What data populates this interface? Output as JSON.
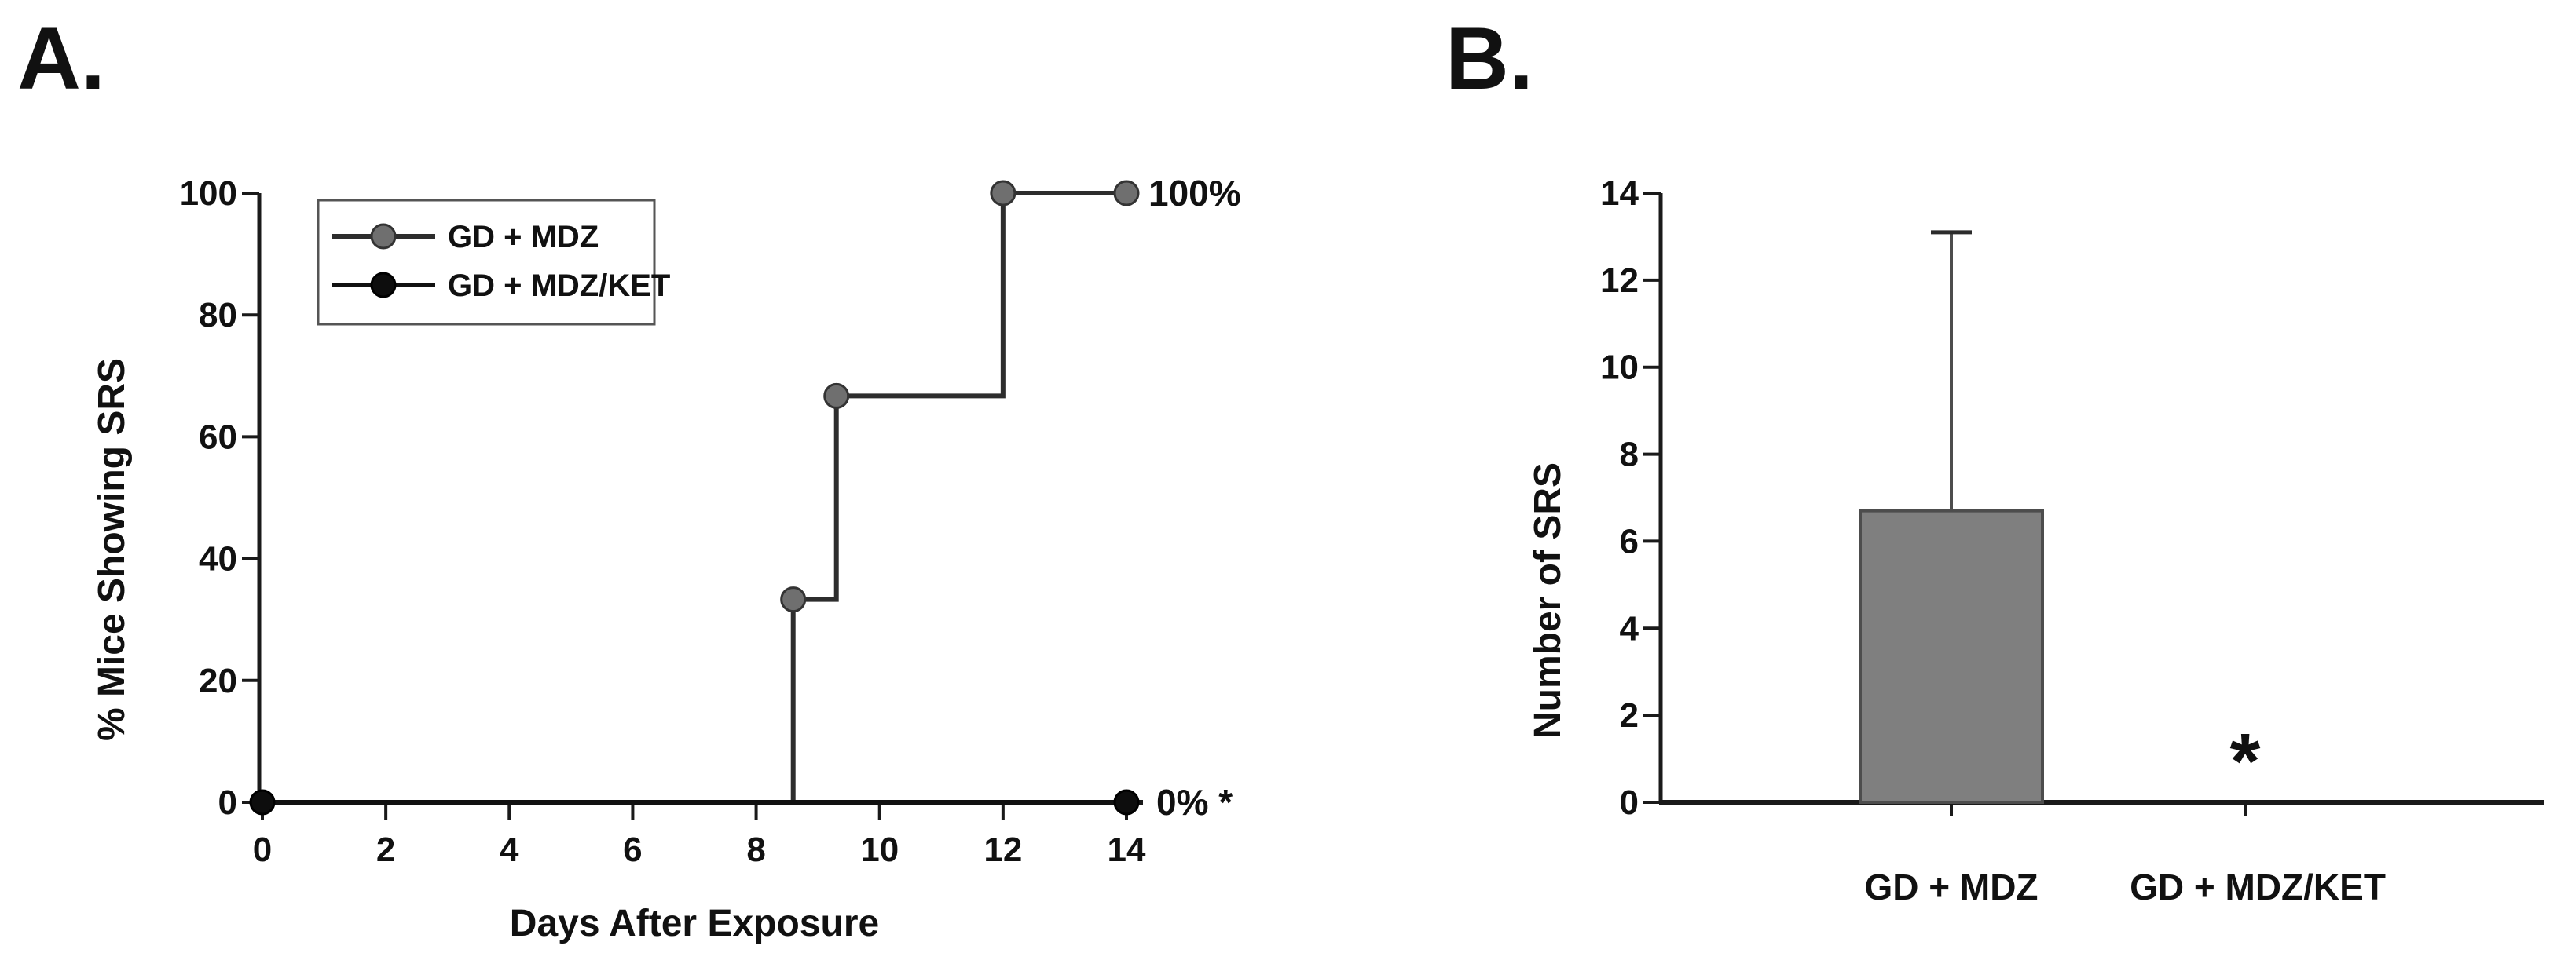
{
  "figure": {
    "panels": [
      {
        "label": "A."
      },
      {
        "label": "B."
      }
    ]
  },
  "colors": {
    "background": "#ffffff",
    "axis": "#1a1a1a",
    "text": "#111111",
    "gray_series_marker": "#6f6f6f",
    "gray_series_line": "#2d2d2d",
    "black_series": "#0d0d0d",
    "bar_fill": "#7f7f7f",
    "bar_edge": "#4d4d4d",
    "error_bar": "#4d4d4d"
  },
  "chart_data": [
    {
      "id": "panel_a",
      "type": "line",
      "line_style": "step-after",
      "xlabel": "Days After Exposure",
      "ylabel": "% Mice Showing SRS",
      "xlim": [
        0,
        14
      ],
      "ylim": [
        0,
        100
      ],
      "xticks": [
        0,
        2,
        4,
        6,
        8,
        10,
        12,
        14
      ],
      "yticks": [
        0,
        20,
        40,
        60,
        80,
        100
      ],
      "grid": false,
      "legend_position": "upper-left-inside",
      "series": [
        {
          "name": "GD + MDZ",
          "marker_fill": "#6f6f6f",
          "marker_edge": "#333333",
          "line_color": "#2d2d2d",
          "x": [
            0,
            8.6,
            9.3,
            12,
            14
          ],
          "y": [
            0,
            33.3,
            66.7,
            100,
            100
          ],
          "markers": [
            [
              8.6,
              33.3
            ],
            [
              9.3,
              66.7
            ],
            [
              12,
              100
            ],
            [
              14,
              100
            ]
          ],
          "end_label": "100%"
        },
        {
          "name": "GD + MDZ/KET",
          "marker_fill": "#0d0d0d",
          "marker_edge": "#000000",
          "line_color": "#111111",
          "x": [
            0,
            14
          ],
          "y": [
            0,
            0
          ],
          "markers": [
            [
              0,
              0
            ],
            [
              14,
              0
            ]
          ],
          "end_label": "0% *"
        }
      ]
    },
    {
      "id": "panel_b",
      "type": "bar",
      "xlabel": "",
      "ylabel": "Number of SRS",
      "ylim": [
        0,
        14
      ],
      "yticks": [
        0,
        2,
        4,
        6,
        8,
        10,
        12,
        14
      ],
      "grid": false,
      "categories": [
        "GD + MDZ",
        "GD + MDZ/KET"
      ],
      "values": [
        6.7,
        0
      ],
      "error_up": [
        6.4,
        0
      ],
      "annotations": [
        {
          "text": "*",
          "category_index": 1,
          "y": 1.3
        }
      ]
    }
  ]
}
